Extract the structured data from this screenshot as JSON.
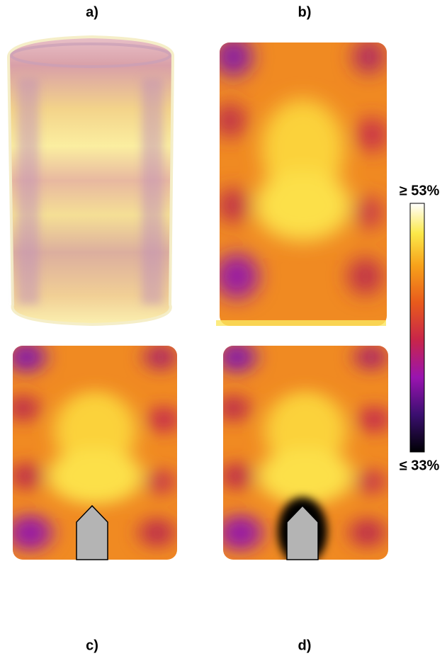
{
  "panels": {
    "a": "a)",
    "b": "b)",
    "c": "c)",
    "d": "d)"
  },
  "colorbar": {
    "max_label": "≥ 53%",
    "min_label": "≤ 33%"
  }
}
